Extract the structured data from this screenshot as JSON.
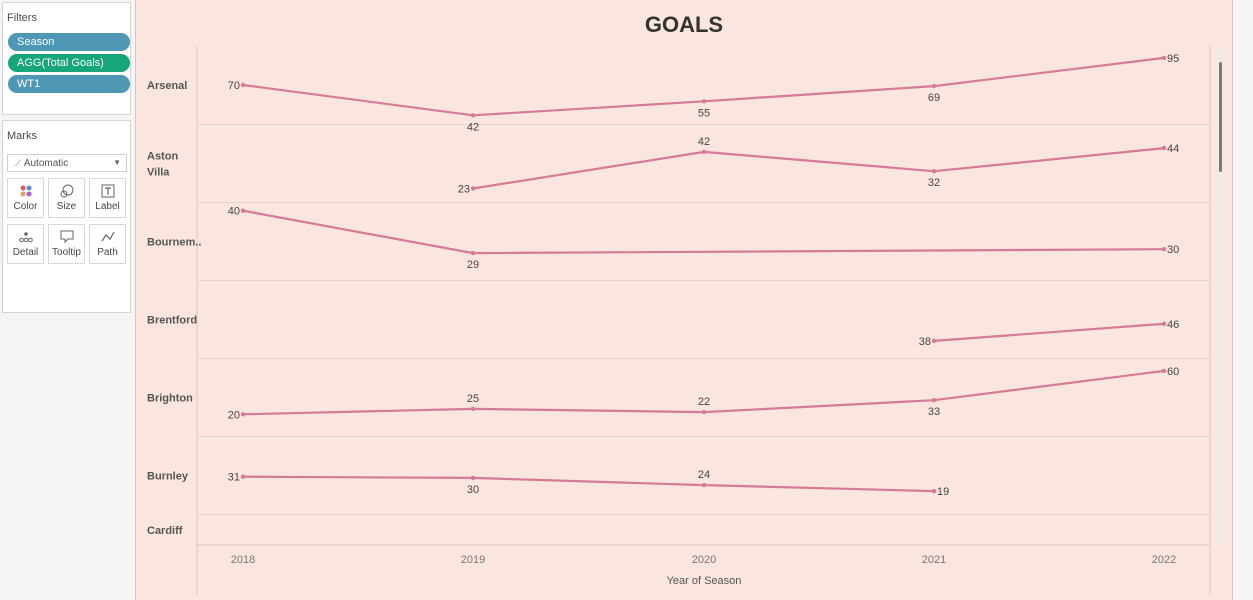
{
  "filters": {
    "title": "Filters",
    "pills": [
      {
        "label": "Season",
        "color": "#4e97b5"
      },
      {
        "label": "AGG(Total Goals)",
        "color": "#17a57a"
      },
      {
        "label": "WT1",
        "color": "#4e97b5"
      }
    ]
  },
  "marks": {
    "title": "Marks",
    "type_value": "Automatic",
    "buttons": [
      {
        "label": "Color",
        "icon": "color-icon"
      },
      {
        "label": "Size",
        "icon": "size-icon"
      },
      {
        "label": "Label",
        "icon": "label-icon"
      },
      {
        "label": "Detail",
        "icon": "detail-icon"
      },
      {
        "label": "Tooltip",
        "icon": "tooltip-icon"
      },
      {
        "label": "Path",
        "icon": "path-icon"
      }
    ]
  },
  "colors": {
    "line": "#d77a97",
    "background": "#fae6df"
  },
  "chart_data": {
    "type": "line",
    "title": "GOALS",
    "xlabel": "Year of Season",
    "x": [
      "2018",
      "2019",
      "2020",
      "2021",
      "2022"
    ],
    "series": [
      {
        "name": "Arsenal",
        "values": [
          70,
          42,
          55,
          69,
          95
        ]
      },
      {
        "name": "Aston Villa",
        "values": [
          null,
          23,
          42,
          32,
          44
        ]
      },
      {
        "name": "Bournem..",
        "values": [
          40,
          29,
          null,
          null,
          30
        ]
      },
      {
        "name": "Brentford",
        "values": [
          null,
          null,
          null,
          38,
          46
        ]
      },
      {
        "name": "Brighton",
        "values": [
          20,
          25,
          22,
          33,
          60
        ]
      },
      {
        "name": "Burnley",
        "values": [
          31,
          30,
          24,
          19,
          null
        ]
      },
      {
        "name": "Cardiff",
        "values": [
          null,
          null,
          null,
          null,
          null
        ]
      }
    ],
    "label_positions": [
      [
        "left",
        "below",
        "below",
        "below",
        "right"
      ],
      [
        null,
        "left",
        "above",
        "below",
        "right"
      ],
      [
        "left",
        "below",
        null,
        null,
        "right"
      ],
      [
        null,
        null,
        null,
        "left",
        "right"
      ],
      [
        "left",
        "above",
        "above",
        "below",
        "right"
      ],
      [
        "left",
        "below",
        "above",
        "right",
        null
      ],
      [
        null,
        null,
        null,
        null,
        null
      ]
    ],
    "pane_scale": {
      "Arsenal": [
        34,
        106
      ],
      "Aston Villa": [
        16,
        56
      ],
      "Bournem..": [
        22,
        42
      ],
      "Brentford": [
        30,
        66
      ],
      "Brighton": [
        0,
        71
      ],
      "Burnley": [
        0,
        64
      ],
      "Cardiff": [
        0,
        100
      ]
    },
    "grid": false
  }
}
